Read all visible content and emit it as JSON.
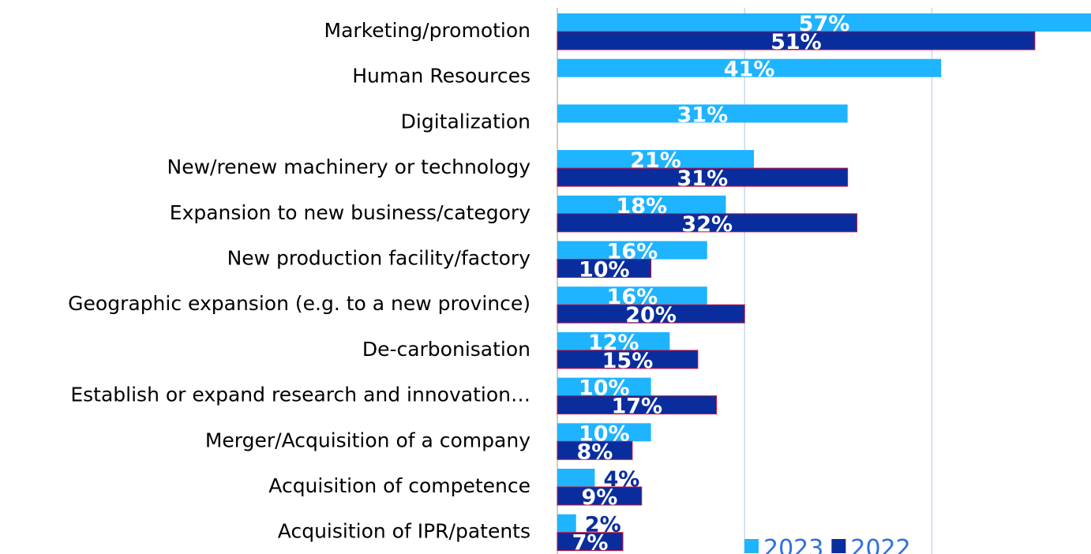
{
  "chart_data": {
    "type": "bar",
    "orientation": "horizontal",
    "categories": [
      "Marketing/promotion",
      "Human Resources",
      "Digitalization",
      "New/renew machinery or technology",
      "Expansion to new business/category",
      "New production facility/factory",
      "Geographic expansion (e.g. to a new province)",
      "De-carbonisation",
      "Establish or expand research and innovation…",
      "Merger/Acquisition of a company",
      "Acquisition of competence",
      "Acquisition of IPR/patents"
    ],
    "series": [
      {
        "name": "2023",
        "color": "#1EB4FF",
        "values": [
          57,
          41,
          31,
          21,
          18,
          16,
          16,
          12,
          10,
          10,
          4,
          2
        ],
        "value_labels": [
          "57%",
          "41%",
          "31%",
          "21%",
          "18%",
          "16%",
          "16%",
          "12%",
          "10%",
          "10%",
          "4%",
          "2%"
        ]
      },
      {
        "name": "2022",
        "color": "#0A2D9E",
        "values": [
          51,
          null,
          null,
          31,
          32,
          10,
          20,
          15,
          17,
          8,
          9,
          7
        ],
        "value_labels": [
          "51%",
          null,
          null,
          "31%",
          "32%",
          "10%",
          "20%",
          "15%",
          "17%",
          "8%",
          "9%",
          "7%"
        ]
      }
    ],
    "xlim": [
      0,
      57
    ],
    "xticks": [
      0,
      20,
      40
    ],
    "grid": true,
    "legend": "bottom-right"
  }
}
